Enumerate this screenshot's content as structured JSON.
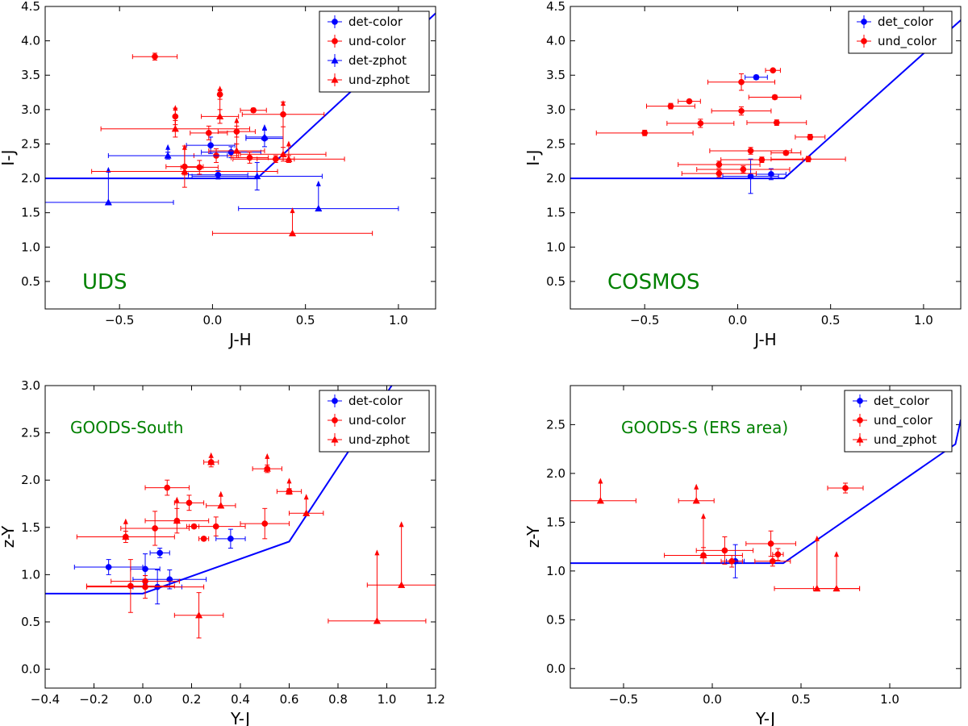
{
  "chart_data": [
    {
      "type": "scatter",
      "panel": "UDS",
      "annotation": "UDS",
      "annotation_color": "#008000",
      "xlabel": "J-H",
      "ylabel": "I-J",
      "xlim": [
        -0.9,
        1.2
      ],
      "ylim": [
        0.1,
        4.5
      ],
      "xticks": [
        -0.5,
        0.0,
        0.5,
        1.0
      ],
      "yticks": [
        0.5,
        1.0,
        1.5,
        2.0,
        2.5,
        3.0,
        3.5,
        4.0,
        4.5
      ],
      "legend_position": "top-right",
      "legend": [
        {
          "label": "det-color",
          "color": "#0000ff",
          "marker": "circle"
        },
        {
          "label": "und-color",
          "color": "#ff0000",
          "marker": "circle"
        },
        {
          "label": "det-zphot",
          "color": "#0000ff",
          "marker": "triangle"
        },
        {
          "label": "und-zphot",
          "color": "#ff0000",
          "marker": "triangle"
        }
      ],
      "selection_line": {
        "color": "#0000ff",
        "x": [
          -0.9,
          0.24,
          1.2
        ],
        "y": [
          2.0,
          2.0,
          4.4
        ]
      },
      "series": [
        {
          "name": "det-color",
          "color": "#0000ff",
          "marker": "circle",
          "points": [
            {
              "x": -0.01,
              "y": 2.48,
              "xerr": 0.13,
              "yerr": 0.12
            },
            {
              "x": 0.1,
              "y": 2.38,
              "xerr": 0.16,
              "yerr": 0.08
            },
            {
              "x": 0.28,
              "y": 2.58,
              "xerr": 0.1,
              "yerr": 0.12
            },
            {
              "x": 0.03,
              "y": 2.05,
              "xerr": 0.16,
              "yerr": 0.06
            }
          ]
        },
        {
          "name": "und-color",
          "color": "#ff0000",
          "marker": "circle",
          "points": [
            {
              "x": -0.31,
              "y": 3.77,
              "xerr": 0.12,
              "yerr": 0.05
            },
            {
              "x": 0.22,
              "y": 2.99,
              "xerr": 0.07,
              "yerr": 0.03
            },
            {
              "x": 0.38,
              "y": 2.93,
              "xerr": 0.22,
              "yerr": 0.18
            },
            {
              "x": 0.04,
              "y": 3.22,
              "xerr": 0.0,
              "yerr": 0.07
            },
            {
              "x": -0.2,
              "y": 2.9,
              "xerr": 0.0,
              "yerr": 0.12
            },
            {
              "x": -0.02,
              "y": 2.66,
              "xerr": 0.1,
              "yerr": 0.1
            },
            {
              "x": 0.13,
              "y": 2.68,
              "xerr": 0.1,
              "yerr": 0.08
            },
            {
              "x": 0.02,
              "y": 2.33,
              "xerr": 0.12,
              "yerr": 0.1
            },
            {
              "x": -0.07,
              "y": 2.16,
              "xerr": 0.1,
              "yerr": 0.1
            },
            {
              "x": 0.2,
              "y": 2.3,
              "xerr": 0.1,
              "yerr": 0.08
            },
            {
              "x": -0.15,
              "y": 2.17,
              "xerr": 0.1,
              "yerr": 0.3
            },
            {
              "x": 0.34,
              "y": 2.28,
              "xerr": 0.1,
              "yerr": 0.05
            }
          ]
        },
        {
          "name": "det-zphot",
          "color": "#0000ff",
          "marker": "triangle",
          "points": [
            {
              "x": -0.56,
              "y": 1.65,
              "xerr": 0.35,
              "yerr": 0,
              "ylower_limit": 2.12
            },
            {
              "x": 0.57,
              "y": 1.56,
              "xerr": 0.43,
              "yerr": 0,
              "ylower_limit": 1.92
            },
            {
              "x": 0.24,
              "y": 2.03,
              "xerr": 0.35,
              "yerr": 0.2,
              "ylower_limit": null
            },
            {
              "x": -0.24,
              "y": 2.33,
              "xerr": 0.32,
              "yerr": 0.05,
              "ylower_limit": 2.45
            },
            {
              "x": 0.28,
              "y": 2.6,
              "xerr": 0.1,
              "yerr": 0,
              "ylower_limit": 2.74
            }
          ]
        },
        {
          "name": "und-zphot",
          "color": "#ff0000",
          "marker": "triangle",
          "points": [
            {
              "x": 0.43,
              "y": 1.2,
              "xerr": 0.43,
              "yerr": 0,
              "ylower_limit": 1.53
            },
            {
              "x": 0.38,
              "y": 2.35,
              "xerr": 0.23,
              "yerr": 0.1,
              "ylower_limit": 3.09
            },
            {
              "x": -0.2,
              "y": 2.72,
              "xerr": 0.4,
              "yerr": 0.12,
              "ylower_limit": 3.02
            },
            {
              "x": 0.04,
              "y": 2.9,
              "xerr": 0.1,
              "yerr": 0.1,
              "ylower_limit": 3.3
            },
            {
              "x": 0.13,
              "y": 2.4,
              "xerr": 0.15,
              "yerr": 0.1,
              "ylower_limit": 2.84
            },
            {
              "x": 0.41,
              "y": 2.28,
              "xerr": 0.3,
              "yerr": 0.05,
              "ylower_limit": 2.5
            },
            {
              "x": -0.15,
              "y": 2.1,
              "xerr": 0.5,
              "yerr": 0.05,
              "ylower_limit": 2.45
            }
          ]
        }
      ]
    },
    {
      "type": "scatter",
      "panel": "COSMOS",
      "annotation": "COSMOS",
      "annotation_color": "#008000",
      "xlabel": "J-H",
      "ylabel": "I-J",
      "xlim": [
        -0.9,
        1.2
      ],
      "ylim": [
        0.1,
        4.5
      ],
      "xticks": [
        -0.5,
        0.0,
        0.5,
        1.0
      ],
      "yticks": [
        0.5,
        1.0,
        1.5,
        2.0,
        2.5,
        3.0,
        3.5,
        4.0,
        4.5
      ],
      "legend_position": "top-right",
      "legend": [
        {
          "label": "det_color",
          "color": "#0000ff",
          "marker": "circle"
        },
        {
          "label": "und_color",
          "color": "#ff0000",
          "marker": "circle"
        }
      ],
      "selection_line": {
        "color": "#0000ff",
        "x": [
          -0.9,
          0.25,
          1.2
        ],
        "y": [
          2.0,
          2.0,
          4.3
        ]
      },
      "series": [
        {
          "name": "det_color",
          "color": "#0000ff",
          "marker": "circle",
          "points": [
            {
              "x": 0.1,
              "y": 3.47,
              "xerr": 0.06,
              "yerr": 0.03
            },
            {
              "x": 0.07,
              "y": 2.03,
              "xerr": 0.15,
              "yerr": 0.25
            },
            {
              "x": 0.18,
              "y": 2.06,
              "xerr": 0.08,
              "yerr": 0.08
            }
          ]
        },
        {
          "name": "und_color",
          "color": "#ff0000",
          "marker": "circle",
          "points": [
            {
              "x": 0.19,
              "y": 3.57,
              "xerr": 0.04,
              "yerr": 0.02
            },
            {
              "x": 0.02,
              "y": 3.4,
              "xerr": 0.18,
              "yerr": 0.12
            },
            {
              "x": -0.36,
              "y": 3.05,
              "xerr": 0.13,
              "yerr": 0.04
            },
            {
              "x": -0.26,
              "y": 3.12,
              "xerr": 0.06,
              "yerr": 0.02
            },
            {
              "x": 0.2,
              "y": 3.18,
              "xerr": 0.14,
              "yerr": 0.03
            },
            {
              "x": 0.02,
              "y": 2.98,
              "xerr": 0.16,
              "yerr": 0.06
            },
            {
              "x": -0.2,
              "y": 2.8,
              "xerr": 0.18,
              "yerr": 0.06
            },
            {
              "x": 0.21,
              "y": 2.81,
              "xerr": 0.16,
              "yerr": 0.04
            },
            {
              "x": -0.5,
              "y": 2.66,
              "xerr": 0.26,
              "yerr": 0.04
            },
            {
              "x": 0.26,
              "y": 2.37,
              "xerr": 0.08,
              "yerr": 0.03
            },
            {
              "x": 0.39,
              "y": 2.6,
              "xerr": 0.08,
              "yerr": 0.04
            },
            {
              "x": 0.38,
              "y": 2.28,
              "xerr": 0.2,
              "yerr": 0.04
            },
            {
              "x": 0.07,
              "y": 2.4,
              "xerr": 0.22,
              "yerr": 0.05
            },
            {
              "x": -0.1,
              "y": 2.2,
              "xerr": 0.22,
              "yerr": 0.05
            },
            {
              "x": 0.13,
              "y": 2.27,
              "xerr": 0.22,
              "yerr": 0.04
            },
            {
              "x": 0.03,
              "y": 2.13,
              "xerr": 0.25,
              "yerr": 0.05
            },
            {
              "x": -0.1,
              "y": 2.07,
              "xerr": 0.2,
              "yerr": 0.05
            }
          ]
        }
      ]
    },
    {
      "type": "scatter",
      "panel": "GOODS-South",
      "annotation": "GOODS-South",
      "annotation_color": "#008000",
      "xlabel": "Y-J",
      "ylabel": "z-Y",
      "xlim": [
        -0.4,
        1.2
      ],
      "ylim": [
        -0.2,
        3.0
      ],
      "xticks": [
        -0.4,
        -0.2,
        0.0,
        0.2,
        0.4,
        0.6,
        0.8,
        1.0,
        1.2
      ],
      "yticks": [
        0.0,
        0.5,
        1.0,
        1.5,
        2.0,
        2.5,
        3.0
      ],
      "legend_position": "top-right",
      "legend": [
        {
          "label": "det-color",
          "color": "#0000ff",
          "marker": "circle"
        },
        {
          "label": "und-color",
          "color": "#ff0000",
          "marker": "circle"
        },
        {
          "label": "und-zphot",
          "color": "#ff0000",
          "marker": "triangle"
        }
      ],
      "selection_line": {
        "color": "#0000ff",
        "x": [
          -0.4,
          0.0,
          0.6,
          1.02
        ],
        "y": [
          0.8,
          0.8,
          1.35,
          3.0
        ]
      },
      "series": [
        {
          "name": "det-color",
          "color": "#0000ff",
          "marker": "circle",
          "points": [
            {
              "x": -0.14,
              "y": 1.08,
              "xerr": 0.14,
              "yerr": 0.08
            },
            {
              "x": 0.07,
              "y": 1.23,
              "xerr": 0.04,
              "yerr": 0.05
            },
            {
              "x": 0.36,
              "y": 1.38,
              "xerr": 0.06,
              "yerr": 0.1
            },
            {
              "x": 0.01,
              "y": 1.06,
              "xerr": 0.06,
              "yerr": 0.16
            },
            {
              "x": 0.06,
              "y": 0.87,
              "xerr": 0.1,
              "yerr": 0.18
            },
            {
              "x": 0.11,
              "y": 0.95,
              "xerr": 0.15,
              "yerr": 0.1
            }
          ]
        },
        {
          "name": "und-color",
          "color": "#ff0000",
          "marker": "circle",
          "points": [
            {
              "x": 0.1,
              "y": 1.92,
              "xerr": 0.09,
              "yerr": 0.08
            },
            {
              "x": 0.19,
              "y": 1.76,
              "xerr": 0.06,
              "yerr": 0.08
            },
            {
              "x": 0.28,
              "y": 2.19,
              "xerr": 0.03,
              "yerr": 0.05
            },
            {
              "x": 0.51,
              "y": 2.12,
              "xerr": 0.06,
              "yerr": 0.04
            },
            {
              "x": 0.6,
              "y": 1.88,
              "xerr": 0.05,
              "yerr": 0.03
            },
            {
              "x": 0.14,
              "y": 1.57,
              "xerr": 0.13,
              "yerr": 0.13
            },
            {
              "x": 0.05,
              "y": 1.49,
              "xerr": 0.14,
              "yerr": 0.18
            },
            {
              "x": 0.21,
              "y": 1.51,
              "xerr": 0.02,
              "yerr": 0.02
            },
            {
              "x": 0.25,
              "y": 1.38,
              "xerr": 0.02,
              "yerr": 0.02
            },
            {
              "x": 0.5,
              "y": 1.54,
              "xerr": 0.1,
              "yerr": 0.16
            },
            {
              "x": -0.07,
              "y": 1.4,
              "xerr": 0.2,
              "yerr": 0.06
            },
            {
              "x": 0.3,
              "y": 1.51,
              "xerr": 0.12,
              "yerr": 0.1
            },
            {
              "x": -0.05,
              "y": 0.88,
              "xerr": 0.18,
              "yerr": 0.28
            },
            {
              "x": 0.01,
              "y": 0.93,
              "xerr": 0.14,
              "yerr": 0.06
            },
            {
              "x": 0.01,
              "y": 0.87,
              "xerr": 0.24,
              "yerr": 0.12
            }
          ]
        },
        {
          "name": "und-zphot",
          "color": "#ff0000",
          "marker": "triangle",
          "points": [
            {
              "x": 0.96,
              "y": 0.51,
              "xerr": 0.2,
              "yerr": 0,
              "ylower_limit": 1.23
            },
            {
              "x": 1.06,
              "y": 0.89,
              "xerr": 0.14,
              "yerr": 0,
              "ylower_limit": 1.53
            },
            {
              "x": 0.23,
              "y": 0.57,
              "xerr": 0.1,
              "yerr": 0.24,
              "ylower_limit": null
            },
            {
              "x": -0.07,
              "y": 1.4,
              "xerr": 0,
              "yerr": 0,
              "ylower_limit": 1.56
            },
            {
              "x": 0.32,
              "y": 1.73,
              "xerr": 0.06,
              "yerr": 0,
              "ylower_limit": 1.85
            },
            {
              "x": 0.14,
              "y": 1.57,
              "xerr": 0,
              "yerr": 0,
              "ylower_limit": 1.79
            },
            {
              "x": 0.28,
              "y": 2.19,
              "xerr": 0,
              "yerr": 0,
              "ylower_limit": 2.26
            },
            {
              "x": 0.51,
              "y": 2.12,
              "xerr": 0,
              "yerr": 0,
              "ylower_limit": 2.25
            },
            {
              "x": 0.6,
              "y": 1.88,
              "xerr": 0,
              "yerr": 0,
              "ylower_limit": 1.99
            },
            {
              "x": 0.67,
              "y": 1.65,
              "xerr": 0.07,
              "yerr": 0,
              "ylower_limit": 1.82
            }
          ]
        }
      ]
    },
    {
      "type": "scatter",
      "panel": "GOODS-S (ERS area)",
      "annotation": "GOODS-S (ERS area)",
      "annotation_color": "#008000",
      "xlabel": "Y-J",
      "ylabel": "z-Y",
      "xlim": [
        -0.8,
        1.4
      ],
      "ylim": [
        -0.2,
        2.9
      ],
      "xticks": [
        -0.5,
        0.0,
        0.5,
        1.0
      ],
      "yticks": [
        0.0,
        0.5,
        1.0,
        1.5,
        2.0,
        2.5
      ],
      "legend_position": "top-right",
      "legend": [
        {
          "label": "det_color",
          "color": "#0000ff",
          "marker": "circle"
        },
        {
          "label": "und_color",
          "color": "#ff0000",
          "marker": "circle"
        },
        {
          "label": "und_zphot",
          "color": "#ff0000",
          "marker": "triangle"
        }
      ],
      "selection_line": {
        "color": "#0000ff",
        "x": [
          -0.8,
          0.4,
          1.37,
          1.4
        ],
        "y": [
          1.08,
          1.08,
          2.3,
          2.55
        ]
      },
      "series": [
        {
          "name": "det_color",
          "color": "#0000ff",
          "marker": "circle",
          "points": [
            {
              "x": 0.13,
              "y": 1.1,
              "xerr": 0.05,
              "yerr": 0.17
            }
          ]
        },
        {
          "name": "und_color",
          "color": "#ff0000",
          "marker": "circle",
          "points": [
            {
              "x": 0.75,
              "y": 1.85,
              "xerr": 0.1,
              "yerr": 0.05
            },
            {
              "x": 0.07,
              "y": 1.21,
              "xerr": 0.16,
              "yerr": 0.14
            },
            {
              "x": 0.33,
              "y": 1.28,
              "xerr": 0.14,
              "yerr": 0.13
            },
            {
              "x": 0.37,
              "y": 1.17,
              "xerr": 0.03,
              "yerr": 0.06
            },
            {
              "x": 0.34,
              "y": 1.1,
              "xerr": 0.1,
              "yerr": 0.05
            },
            {
              "x": -0.05,
              "y": 1.16,
              "xerr": 0.22,
              "yerr": 0.08
            },
            {
              "x": 0.11,
              "y": 1.1,
              "xerr": 0.06,
              "yerr": 0.06
            }
          ]
        },
        {
          "name": "und_zphot",
          "color": "#ff0000",
          "marker": "triangle",
          "points": [
            {
              "x": -0.63,
              "y": 1.72,
              "xerr": 0.2,
              "yerr": 0,
              "ylower_limit": 1.92
            },
            {
              "x": -0.09,
              "y": 1.72,
              "xerr": 0.1,
              "yerr": 0,
              "ylower_limit": 1.86
            },
            {
              "x": -0.05,
              "y": 1.16,
              "xerr": 0,
              "yerr": 0,
              "ylower_limit": 1.56
            },
            {
              "x": 0.59,
              "y": 0.82,
              "xerr": 0.24,
              "yerr": 0,
              "ylower_limit": 1.33
            },
            {
              "x": 0.7,
              "y": 0.82,
              "xerr": 0.13,
              "yerr": 0,
              "ylower_limit": 1.17
            }
          ]
        }
      ]
    }
  ]
}
